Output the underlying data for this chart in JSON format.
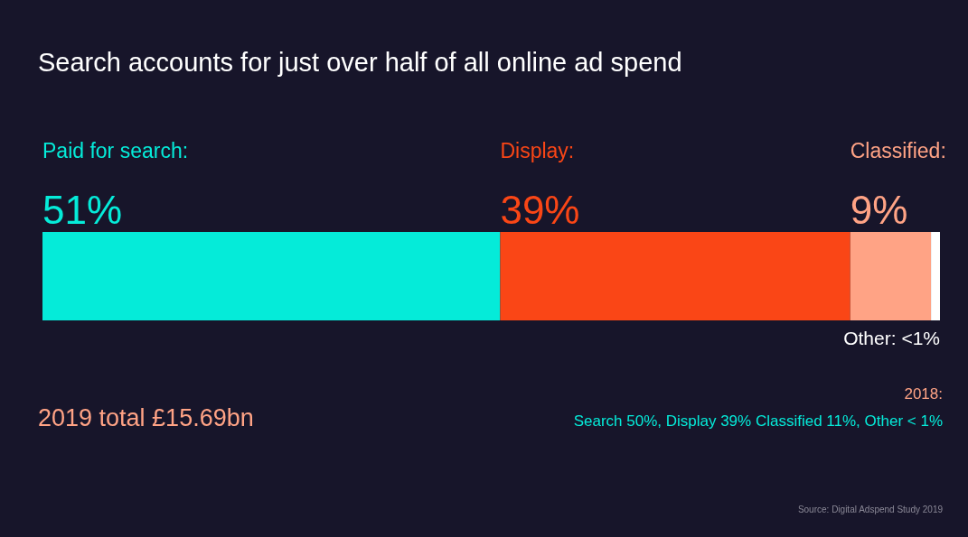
{
  "chart_data": {
    "type": "bar",
    "orientation": "horizontal",
    "stacked": true,
    "title": "Search accounts for just over half of all online ad spend",
    "categories": [
      null
    ],
    "tick_labels": false,
    "legend": false,
    "grid": false,
    "series": [
      {
        "name": "Paid for search:",
        "color": "#05ebd9",
        "values": [
          51
        ],
        "value_labels": [
          "51%"
        ]
      },
      {
        "name": "Display:",
        "color": "#fa4616",
        "values": [
          39
        ],
        "value_labels": [
          "39%"
        ]
      },
      {
        "name": "Classified:",
        "color": "#ffa385",
        "values": [
          9
        ],
        "value_labels": [
          "9%"
        ]
      },
      {
        "name": "Other:",
        "color": "#ffffff",
        "values": [
          1
        ],
        "value_labels": [
          "<1%"
        ]
      }
    ],
    "annotations": [
      "2019 total £15.69bn",
      "2018:",
      "Search 50%, Display 39% Classified 11%, Other < 1%",
      "Source: Digital Adspend Study 2019"
    ]
  }
}
